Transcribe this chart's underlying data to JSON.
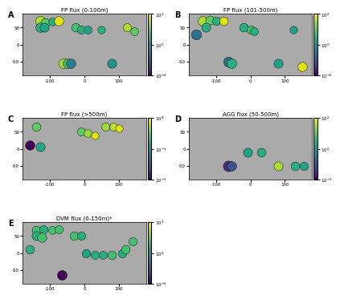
{
  "panels": [
    {
      "label": "A",
      "title": "FP flux (0-100m)",
      "cbar_ticks": [
        0.01,
        1.0,
        100
      ],
      "cbar_labels": [
        "10^-2",
        "10^0",
        "10^2"
      ],
      "vmin": -2,
      "vmax": 2,
      "points": [
        {
          "lon": -130,
          "lat": 70,
          "val": 1.5,
          "size": 80
        },
        {
          "lon": -115,
          "lat": 65,
          "val": 1.0,
          "size": 60
        },
        {
          "lon": -95,
          "lat": 68,
          "val": 0.5,
          "size": 50
        },
        {
          "lon": -75,
          "lat": 70,
          "val": 1.8,
          "size": 70
        },
        {
          "lon": -130,
          "lat": 50,
          "val": 0.5,
          "size": 70
        },
        {
          "lon": -118,
          "lat": 50,
          "val": 0.3,
          "size": 65
        },
        {
          "lon": -25,
          "lat": 50,
          "val": 0.8,
          "size": 60
        },
        {
          "lon": -10,
          "lat": 45,
          "val": 0.5,
          "size": 55
        },
        {
          "lon": 10,
          "lat": 45,
          "val": 0.3,
          "size": 50
        },
        {
          "lon": 50,
          "lat": 45,
          "val": 0.5,
          "size": 45
        },
        {
          "lon": 125,
          "lat": 50,
          "val": 1.5,
          "size": 55
        },
        {
          "lon": 145,
          "lat": 40,
          "val": 1.0,
          "size": 50
        },
        {
          "lon": -60,
          "lat": -55,
          "val": 1.5,
          "size": 80
        },
        {
          "lon": -50,
          "lat": -55,
          "val": 0.8,
          "size": 75
        },
        {
          "lon": -40,
          "lat": -55,
          "val": -0.3,
          "size": 70
        },
        {
          "lon": 80,
          "lat": -55,
          "val": 0.0,
          "size": 65
        }
      ]
    },
    {
      "label": "B",
      "title": "FP flux (101-500m)",
      "cbar_ticks": [
        0.01,
        1.0,
        100
      ],
      "cbar_labels": [
        "10^-2",
        "10^0",
        "10^2"
      ],
      "vmin": -2,
      "vmax": 2,
      "points": [
        {
          "lon": -140,
          "lat": 70,
          "val": 1.5,
          "size": 75
        },
        {
          "lon": -120,
          "lat": 72,
          "val": 1.0,
          "size": 65
        },
        {
          "lon": -100,
          "lat": 70,
          "val": 0.5,
          "size": 55
        },
        {
          "lon": -80,
          "lat": 70,
          "val": 1.8,
          "size": 60
        },
        {
          "lon": -160,
          "lat": 30,
          "val": -0.5,
          "size": 80
        },
        {
          "lon": -130,
          "lat": 50,
          "val": 0.5,
          "size": 65
        },
        {
          "lon": -20,
          "lat": 50,
          "val": 0.5,
          "size": 60
        },
        {
          "lon": 0,
          "lat": 45,
          "val": 0.8,
          "size": 55
        },
        {
          "lon": 10,
          "lat": 40,
          "val": 0.5,
          "size": 50
        },
        {
          "lon": 125,
          "lat": 45,
          "val": 0.3,
          "size": 45
        },
        {
          "lon": -65,
          "lat": -50,
          "val": -0.5,
          "size": 80
        },
        {
          "lon": -55,
          "lat": -55,
          "val": 0.5,
          "size": 75
        },
        {
          "lon": 80,
          "lat": -55,
          "val": 0.3,
          "size": 65
        },
        {
          "lon": 150,
          "lat": -65,
          "val": 1.8,
          "size": 70
        }
      ]
    },
    {
      "label": "C",
      "title": "FP flux (>500m)",
      "cbar_ticks": [
        0.01,
        0.1,
        1.0
      ],
      "cbar_labels": [
        "10^-2",
        "10^-1",
        "10^0"
      ],
      "vmin": -2,
      "vmax": 0,
      "points": [
        {
          "lon": -140,
          "lat": 65,
          "val": -0.5,
          "size": 60
        },
        {
          "lon": -160,
          "lat": 10,
          "val": -2.0,
          "size": 70
        },
        {
          "lon": -130,
          "lat": 5,
          "val": -0.8,
          "size": 65
        },
        {
          "lon": -10,
          "lat": 50,
          "val": -0.5,
          "size": 55
        },
        {
          "lon": 10,
          "lat": 45,
          "val": -0.3,
          "size": 50
        },
        {
          "lon": 30,
          "lat": 40,
          "val": -0.1,
          "size": 45
        },
        {
          "lon": 60,
          "lat": 65,
          "val": -0.3,
          "size": 55
        },
        {
          "lon": 85,
          "lat": 65,
          "val": -0.2,
          "size": 50
        },
        {
          "lon": 100,
          "lat": 60,
          "val": -0.1,
          "size": 45
        }
      ]
    },
    {
      "label": "D",
      "title": "AGG flux (50-500m)",
      "cbar_ticks": [
        0.01,
        1.0,
        100
      ],
      "cbar_labels": [
        "10^-2",
        "10^0",
        "10^2"
      ],
      "vmin": -2,
      "vmax": 2,
      "points": [
        {
          "lon": -10,
          "lat": -10,
          "val": 0.3,
          "size": 65
        },
        {
          "lon": 30,
          "lat": -10,
          "val": 0.5,
          "size": 60
        },
        {
          "lon": -65,
          "lat": -50,
          "val": -1.5,
          "size": 90
        },
        {
          "lon": -55,
          "lat": -50,
          "val": -1.0,
          "size": 70
        },
        {
          "lon": 80,
          "lat": -50,
          "val": 1.5,
          "size": 65
        },
        {
          "lon": 130,
          "lat": -50,
          "val": 0.5,
          "size": 60
        },
        {
          "lon": 155,
          "lat": -50,
          "val": 0.3,
          "size": 55
        }
      ]
    },
    {
      "label": "E",
      "title": "DVM flux (0-150m)*",
      "cbar_ticks": [
        0.01,
        1.0,
        100
      ],
      "cbar_labels": [
        "10^-2",
        "10^0",
        "10^2"
      ],
      "vmin": -2,
      "vmax": 2,
      "points": [
        {
          "lon": -140,
          "lat": 68,
          "val": 0.8,
          "size": 60
        },
        {
          "lon": -120,
          "lat": 70,
          "val": 0.5,
          "size": 55
        },
        {
          "lon": -95,
          "lat": 68,
          "val": 0.8,
          "size": 50
        },
        {
          "lon": -75,
          "lat": 70,
          "val": 0.8,
          "size": 55
        },
        {
          "lon": -140,
          "lat": 50,
          "val": 0.5,
          "size": 65
        },
        {
          "lon": -125,
          "lat": 45,
          "val": 0.8,
          "size": 70
        },
        {
          "lon": -30,
          "lat": 50,
          "val": 0.8,
          "size": 60
        },
        {
          "lon": -10,
          "lat": 50,
          "val": 0.5,
          "size": 55
        },
        {
          "lon": -160,
          "lat": 10,
          "val": 0.5,
          "size": 60
        },
        {
          "lon": 5,
          "lat": 0,
          "val": 0.3,
          "size": 55
        },
        {
          "lon": 30,
          "lat": -5,
          "val": 0.5,
          "size": 55
        },
        {
          "lon": 55,
          "lat": -5,
          "val": 0.5,
          "size": 50
        },
        {
          "lon": 80,
          "lat": -5,
          "val": 0.8,
          "size": 60
        },
        {
          "lon": 110,
          "lat": 0,
          "val": 0.5,
          "size": 55
        },
        {
          "lon": 120,
          "lat": 10,
          "val": 0.8,
          "size": 60
        },
        {
          "lon": 140,
          "lat": 35,
          "val": 0.8,
          "size": 55
        },
        {
          "lon": -65,
          "lat": -65,
          "val": -2.0,
          "size": 75
        }
      ]
    }
  ],
  "map_bg": "#000000",
  "land_color": "#1a1a1a",
  "ocean_color": "#d0d0d0",
  "fig_bg": "#ffffff"
}
